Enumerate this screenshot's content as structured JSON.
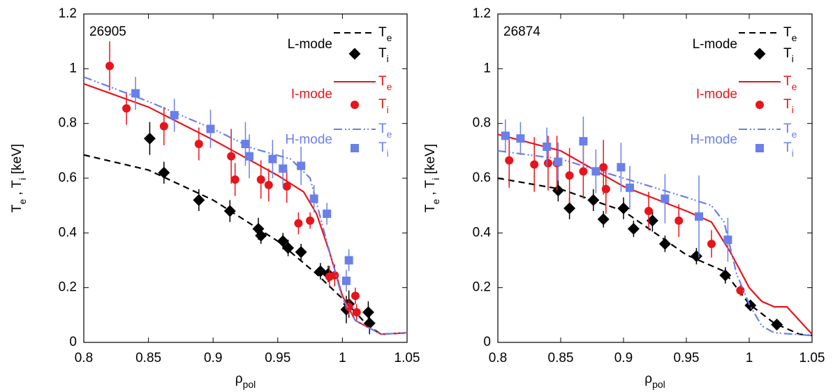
{
  "chart_data": [
    {
      "type": "line_scatter",
      "title": "26905",
      "xlabel": [
        "ρ",
        "pol"
      ],
      "ylabel": [
        "T",
        "e",
        " , T",
        "i",
        " [keV]"
      ],
      "xlim": [
        0.8,
        1.05
      ],
      "ylim": [
        0,
        1.2
      ],
      "xticks": [
        0.8,
        0.85,
        0.9,
        0.95,
        1,
        1.05
      ],
      "yticks": [
        0,
        0.2,
        0.4,
        0.6,
        0.8,
        1,
        1.2
      ],
      "legend": "upper right",
      "groups": [
        {
          "name": "L-mode",
          "color": "#000000"
        },
        {
          "name": "I-mode",
          "color": "#e8141b"
        },
        {
          "name": "H-mode",
          "color": "#6b7fe8"
        }
      ],
      "series": [
        {
          "name": "T",
          "name_sub": "e",
          "kind": "line",
          "dash": "9,6",
          "color": "#000000",
          "x": [
            0.8,
            0.85,
            0.9,
            0.95,
            0.98,
            1.0,
            1.02,
            1.03,
            1.05
          ],
          "values": [
            0.685,
            0.63,
            0.52,
            0.37,
            0.25,
            0.16,
            0.06,
            0.03,
            0.035
          ]
        },
        {
          "name": "T",
          "name_sub": "i",
          "kind": "scatter",
          "marker": "diamond",
          "color": "#000000",
          "x": [
            0.851,
            0.862,
            0.889,
            0.913,
            0.935,
            0.937,
            0.954,
            0.958,
            0.968,
            0.983,
            0.989,
            1.003,
            1.005,
            1.02,
            1.021
          ],
          "values": [
            0.745,
            0.62,
            0.52,
            0.48,
            0.415,
            0.39,
            0.37,
            0.345,
            0.33,
            0.26,
            0.25,
            0.12,
            0.14,
            0.11,
            0.07
          ],
          "errors": [
            0.06,
            0.04,
            0.04,
            0.04,
            0.04,
            0.03,
            0.03,
            0.03,
            0.03,
            0.03,
            0.03,
            0.05,
            0.05,
            0.04,
            0.04
          ]
        },
        {
          "name": "T",
          "name_sub": "e",
          "kind": "line",
          "dash": "",
          "color": "#e8141b",
          "x": [
            0.8,
            0.85,
            0.9,
            0.95,
            0.97,
            0.98,
            0.99,
            1.0,
            1.01,
            1.03,
            1.05
          ],
          "values": [
            0.945,
            0.86,
            0.74,
            0.61,
            0.55,
            0.47,
            0.33,
            0.17,
            0.08,
            0.03,
            0.035
          ]
        },
        {
          "name": "T",
          "name_sub": "i",
          "kind": "scatter",
          "marker": "circle",
          "color": "#e8141b",
          "x": [
            0.82,
            0.833,
            0.862,
            0.889,
            0.914,
            0.917,
            0.937,
            0.943,
            0.957,
            0.966,
            0.975,
            0.99,
            0.994,
            1.005,
            1.01,
            1.011
          ],
          "values": [
            1.01,
            0.855,
            0.79,
            0.725,
            0.68,
            0.595,
            0.595,
            0.575,
            0.57,
            0.435,
            0.445,
            0.24,
            0.245,
            0.13,
            0.17,
            0.11
          ],
          "errors": [
            0.09,
            0.06,
            0.07,
            0.06,
            0.1,
            0.06,
            0.07,
            0.06,
            0.06,
            0.04,
            0.03,
            0.04,
            0.04,
            0.03,
            0.03,
            0.03
          ]
        },
        {
          "name": "T",
          "name_sub": "e",
          "kind": "line",
          "dash": "12,4,2,3,2,4",
          "color": "#6b7fe8",
          "x": [
            0.8,
            0.85,
            0.9,
            0.93,
            0.96,
            0.975,
            0.985,
            1.0,
            1.01,
            1.03,
            1.05
          ],
          "values": [
            0.97,
            0.88,
            0.78,
            0.71,
            0.67,
            0.6,
            0.42,
            0.16,
            0.08,
            0.03,
            0.035
          ]
        },
        {
          "name": "T",
          "name_sub": "i",
          "kind": "scatter",
          "marker": "square",
          "color": "#6b7fe8",
          "x": [
            0.84,
            0.87,
            0.898,
            0.925,
            0.928,
            0.946,
            0.954,
            0.968,
            0.978,
            0.988,
            1.003,
            1.005
          ],
          "values": [
            0.91,
            0.83,
            0.78,
            0.725,
            0.68,
            0.67,
            0.635,
            0.645,
            0.525,
            0.47,
            0.225,
            0.3
          ],
          "errors": [
            0.06,
            0.06,
            0.07,
            0.08,
            0.08,
            0.07,
            0.07,
            0.07,
            0.05,
            0.04,
            0.04,
            0.04
          ]
        }
      ]
    },
    {
      "type": "line_scatter",
      "title": "26874",
      "xlabel": [
        "ρ",
        "pol"
      ],
      "ylabel": [
        "T",
        "e",
        " , T",
        "i",
        " [keV]"
      ],
      "xlim": [
        0.8,
        1.05
      ],
      "ylim": [
        0,
        1.2
      ],
      "xticks": [
        0.8,
        0.85,
        0.9,
        0.95,
        1,
        1.05
      ],
      "yticks": [
        0,
        0.2,
        0.4,
        0.6,
        0.8,
        1,
        1.2
      ],
      "legend": "upper right",
      "groups": [
        {
          "name": "L-mode",
          "color": "#000000"
        },
        {
          "name": "I-mode",
          "color": "#e8141b"
        },
        {
          "name": "H-mode",
          "color": "#6b7fe8"
        }
      ],
      "series": [
        {
          "name": "T",
          "name_sub": "e",
          "kind": "line",
          "dash": "9,6",
          "color": "#000000",
          "x": [
            0.8,
            0.85,
            0.9,
            0.95,
            0.98,
            1.0,
            1.02,
            1.04,
            1.05
          ],
          "values": [
            0.6,
            0.56,
            0.48,
            0.32,
            0.26,
            0.14,
            0.07,
            0.03,
            0.025
          ]
        },
        {
          "name": "T",
          "name_sub": "i",
          "kind": "scatter",
          "marker": "diamond",
          "color": "#000000",
          "x": [
            0.848,
            0.857,
            0.876,
            0.884,
            0.9,
            0.908,
            0.923,
            0.933,
            0.958,
            0.981,
            1.001,
            1.022
          ],
          "values": [
            0.555,
            0.49,
            0.52,
            0.45,
            0.49,
            0.415,
            0.445,
            0.36,
            0.315,
            0.245,
            0.135,
            0.065
          ],
          "errors": [
            0.04,
            0.04,
            0.04,
            0.03,
            0.04,
            0.03,
            0.04,
            0.03,
            0.03,
            0.03,
            0.02,
            0.02
          ]
        },
        {
          "name": "T",
          "name_sub": "e",
          "kind": "line",
          "dash": "",
          "color": "#e8141b",
          "x": [
            0.8,
            0.85,
            0.9,
            0.95,
            0.97,
            0.985,
            1.0,
            1.01,
            1.02,
            1.03,
            1.05
          ],
          "values": [
            0.76,
            0.7,
            0.57,
            0.48,
            0.44,
            0.33,
            0.2,
            0.15,
            0.13,
            0.13,
            0.03
          ]
        },
        {
          "name": "T",
          "name_sub": "i",
          "kind": "scatter",
          "marker": "circle",
          "color": "#e8141b",
          "x": [
            0.809,
            0.829,
            0.84,
            0.847,
            0.857,
            0.868,
            0.884,
            0.886,
            0.92,
            0.944,
            0.97,
            0.993
          ],
          "values": [
            0.665,
            0.65,
            0.655,
            0.655,
            0.61,
            0.625,
            0.64,
            0.56,
            0.48,
            0.445,
            0.36,
            0.19
          ],
          "errors": [
            0.1,
            0.1,
            0.1,
            0.1,
            0.1,
            0.1,
            0.1,
            0.09,
            0.07,
            0.06,
            0.05,
            0.02
          ]
        },
        {
          "name": "T",
          "name_sub": "e",
          "kind": "line",
          "dash": "12,4,2,3,2,4",
          "color": "#6b7fe8",
          "x": [
            0.8,
            0.85,
            0.9,
            0.95,
            0.97,
            0.98,
            0.99,
            1.0,
            1.01,
            1.02,
            1.05
          ],
          "values": [
            0.7,
            0.67,
            0.6,
            0.53,
            0.5,
            0.44,
            0.25,
            0.14,
            0.06,
            0.035,
            0.025
          ]
        },
        {
          "name": "T",
          "name_sub": "i",
          "kind": "scatter",
          "marker": "square",
          "color": "#6b7fe8",
          "x": [
            0.806,
            0.818,
            0.839,
            0.848,
            0.868,
            0.878,
            0.898,
            0.905,
            0.933,
            0.96,
            0.983
          ],
          "values": [
            0.755,
            0.745,
            0.715,
            0.66,
            0.735,
            0.625,
            0.64,
            0.565,
            0.525,
            0.46,
            0.375
          ],
          "errors": [
            0.06,
            0.06,
            0.07,
            0.07,
            0.09,
            0.08,
            0.09,
            0.08,
            0.09,
            0.15,
            0.08
          ]
        }
      ]
    }
  ]
}
